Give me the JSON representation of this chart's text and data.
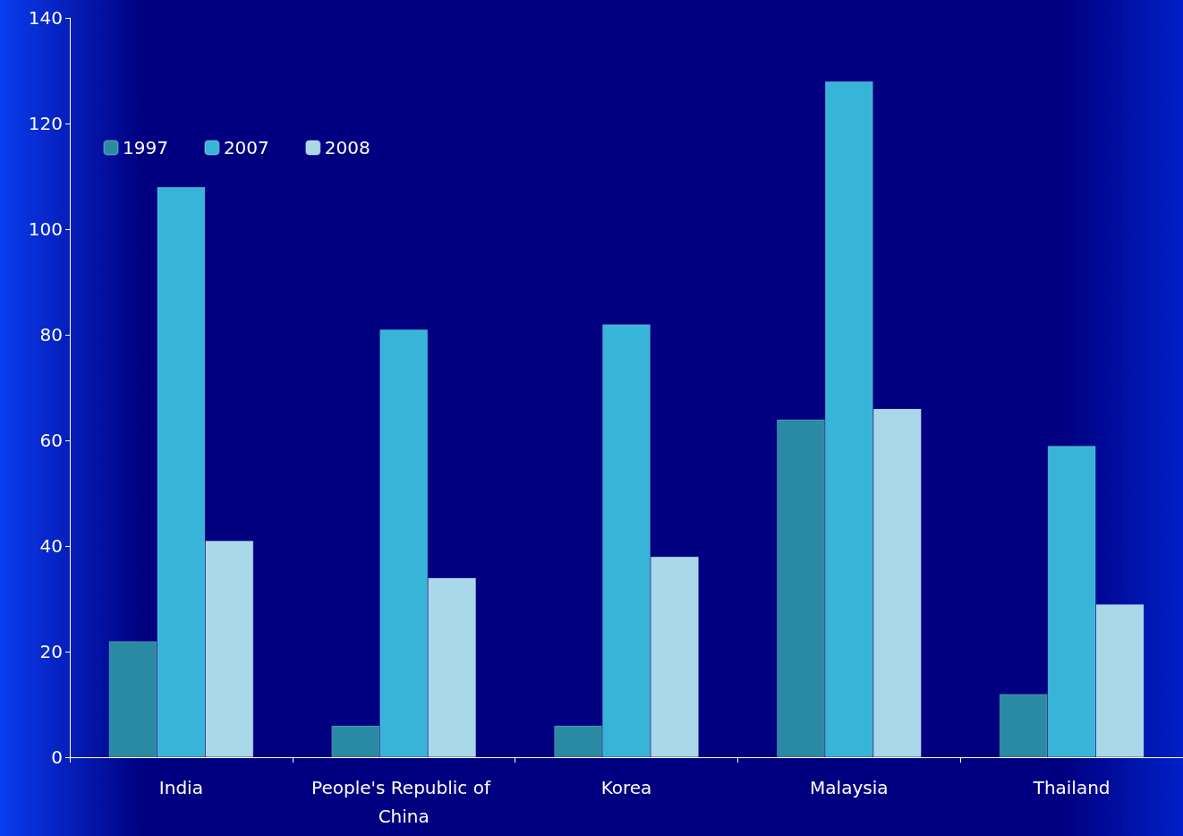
{
  "chart_data": {
    "type": "bar",
    "categories": [
      "India",
      "People's Republic of China",
      "Korea",
      "Malaysia",
      "Thailand"
    ],
    "series": [
      {
        "name": "1997",
        "color": "#2a8aa3",
        "values": [
          22,
          6,
          6,
          64,
          12
        ]
      },
      {
        "name": "2007",
        "color": "#38b4d8",
        "values": [
          108,
          81,
          82,
          128,
          59
        ]
      },
      {
        "name": "2008",
        "color": "#a9d9e8",
        "values": [
          41,
          34,
          38,
          66,
          29
        ]
      }
    ],
    "ylim": [
      0,
      140
    ],
    "yticks": [
      0,
      20,
      40,
      60,
      80,
      100,
      120,
      140
    ],
    "grid": false,
    "legend": "top left"
  }
}
